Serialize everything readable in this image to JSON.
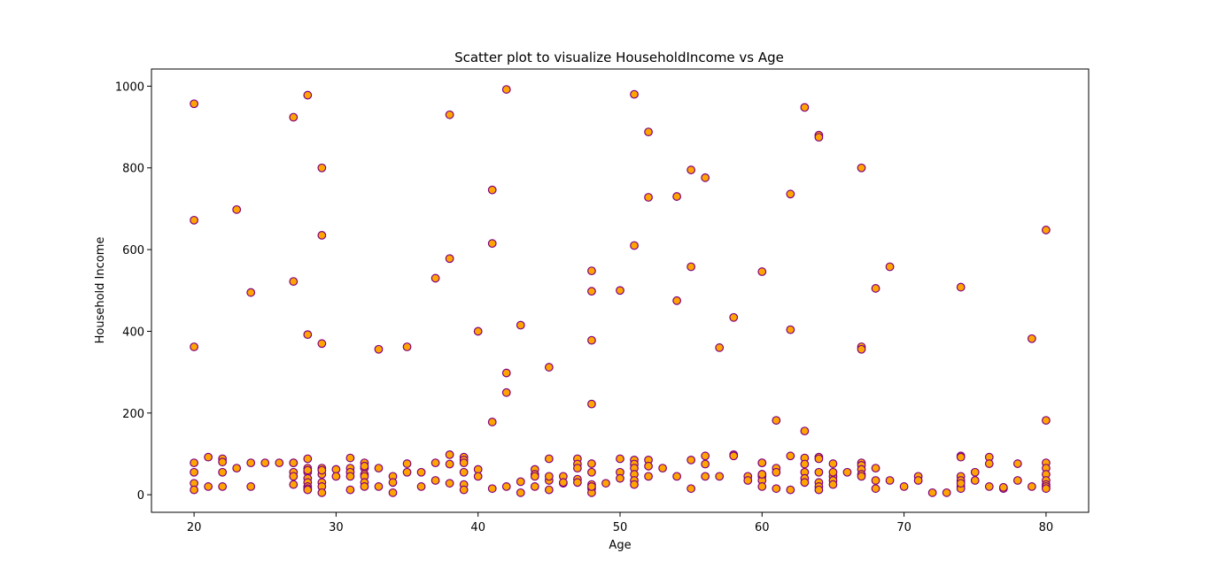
{
  "chart_data": {
    "type": "scatter",
    "title": "Scatter plot to visualize HouseholdIncome vs Age",
    "xlabel": "Age",
    "ylabel": "Household Income",
    "xlim": [
      17,
      83
    ],
    "ylim": [
      -43,
      1042
    ],
    "xticks": [
      20,
      30,
      40,
      50,
      60,
      70,
      80
    ],
    "yticks": [
      0,
      200,
      400,
      600,
      800,
      1000
    ],
    "grid": false,
    "legend": "none",
    "colors": {
      "marker_fill": "#ffa500",
      "marker_edge": "#800080"
    },
    "series": [
      {
        "x": [
          20,
          20,
          20,
          20,
          20,
          20,
          20,
          21,
          21,
          22,
          22,
          22,
          22,
          23,
          23,
          24,
          24,
          24,
          25,
          26,
          27,
          27,
          27,
          27,
          27,
          27,
          27,
          28,
          28,
          28,
          28,
          28,
          28,
          28,
          28,
          28,
          28,
          28,
          29,
          29,
          29,
          29,
          29,
          29,
          29,
          29,
          29,
          30,
          30,
          31,
          31,
          31,
          31,
          31,
          32,
          32,
          32,
          32,
          32,
          32,
          32,
          33,
          33,
          33,
          34,
          34,
          34,
          35,
          35,
          35,
          36,
          36,
          37,
          37,
          37,
          38,
          38,
          38,
          38,
          38,
          39,
          39,
          39,
          39,
          39,
          39,
          40,
          40,
          40,
          41,
          41,
          41,
          41,
          42,
          42,
          42,
          42,
          43,
          43,
          43,
          44,
          44,
          44,
          44,
          45,
          45,
          45,
          45,
          45,
          46,
          46,
          46,
          47,
          47,
          47,
          47,
          47,
          48,
          48,
          48,
          48,
          48,
          48,
          48,
          48,
          48,
          48,
          49,
          50,
          50,
          50,
          50,
          51,
          51,
          51,
          51,
          51,
          51,
          51,
          51,
          52,
          52,
          52,
          52,
          52,
          53,
          54,
          54,
          54,
          55,
          55,
          55,
          55,
          56,
          56,
          56,
          56,
          57,
          57,
          58,
          58,
          58,
          59,
          59,
          60,
          60,
          60,
          60,
          60,
          60,
          60,
          60,
          61,
          61,
          61,
          61,
          62,
          62,
          62,
          62,
          63,
          63,
          63,
          63,
          63,
          63,
          63,
          64,
          64,
          64,
          64,
          64,
          64,
          64,
          64,
          65,
          65,
          65,
          65,
          65,
          66,
          67,
          67,
          67,
          67,
          67,
          67,
          67,
          67,
          68,
          68,
          68,
          68,
          69,
          69,
          70,
          71,
          71,
          72,
          73,
          74,
          74,
          74,
          74,
          74,
          74,
          74,
          74,
          75,
          75,
          76,
          76,
          76,
          77,
          77,
          78,
          78,
          79,
          79,
          80,
          80,
          80,
          80,
          80,
          80,
          80,
          80,
          80
        ],
        "y": [
          957,
          672,
          362,
          78,
          55,
          28,
          12,
          92,
          20,
          88,
          80,
          55,
          20,
          698,
          65,
          495,
          78,
          20,
          78,
          78,
          924,
          522,
          78,
          55,
          45,
          25,
          78,
          978,
          392,
          88,
          65,
          55,
          40,
          30,
          20,
          15,
          12,
          60,
          800,
          635,
          370,
          65,
          50,
          30,
          20,
          5,
          60,
          62,
          45,
          90,
          65,
          55,
          45,
          12,
          78,
          65,
          50,
          45,
          30,
          20,
          70,
          356,
          65,
          20,
          45,
          30,
          5,
          362,
          76,
          55,
          55,
          20,
          530,
          78,
          35,
          930,
          578,
          98,
          75,
          28,
          92,
          85,
          78,
          55,
          25,
          12,
          400,
          62,
          45,
          746,
          615,
          178,
          15,
          992,
          298,
          250,
          20,
          415,
          32,
          5,
          62,
          50,
          20,
          45,
          312,
          88,
          35,
          12,
          45,
          28,
          45,
          30,
          88,
          75,
          65,
          38,
          30,
          548,
          498,
          378,
          222,
          76,
          55,
          25,
          15,
          5,
          20,
          28,
          500,
          88,
          55,
          40,
          980,
          610,
          85,
          75,
          65,
          50,
          35,
          25,
          888,
          728,
          85,
          70,
          45,
          65,
          730,
          475,
          45,
          795,
          558,
          85,
          15,
          776,
          95,
          75,
          45,
          360,
          45,
          434,
          98,
          95,
          45,
          35,
          546,
          78,
          50,
          45,
          35,
          20,
          78,
          50,
          182,
          65,
          55,
          15,
          736,
          404,
          95,
          12,
          948,
          156,
          90,
          75,
          55,
          40,
          30,
          880,
          875,
          92,
          88,
          55,
          30,
          20,
          12,
          76,
          45,
          35,
          25,
          55,
          55,
          800,
          362,
          356,
          78,
          72,
          62,
          50,
          45,
          505,
          65,
          35,
          15,
          558,
          35,
          20,
          45,
          35,
          5,
          5,
          508,
          95,
          92,
          45,
          35,
          20,
          15,
          28,
          55,
          35,
          92,
          76,
          20,
          15,
          18,
          76,
          35,
          382,
          20,
          648,
          182,
          78,
          65,
          50,
          35,
          25,
          20,
          15
        ]
      }
    ]
  }
}
